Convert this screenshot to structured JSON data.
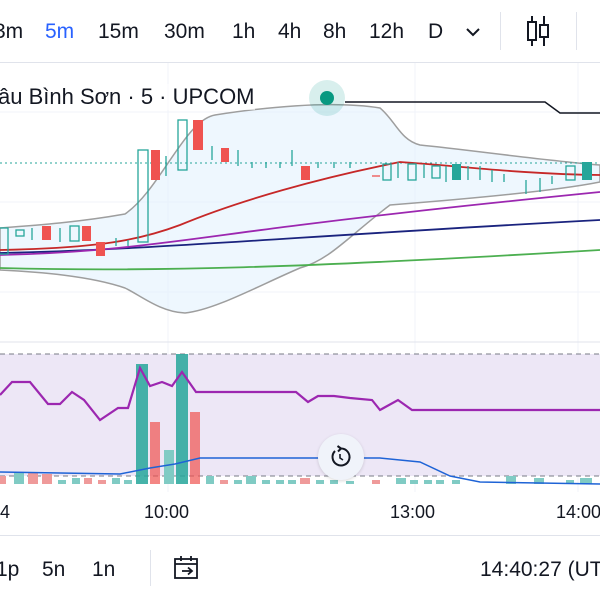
{
  "toolbar": {
    "intervals": [
      {
        "label": "3m"
      },
      {
        "label": "5m"
      },
      {
        "label": "15m"
      },
      {
        "label": "30m"
      },
      {
        "label": "1h"
      },
      {
        "label": "4h"
      },
      {
        "label": "8h"
      },
      {
        "label": "12h"
      },
      {
        "label": "D"
      }
    ],
    "active_interval": "5m",
    "dropdown_icon": "chevron-down-icon",
    "chart_type_icon": "candles-icon"
  },
  "legend": {
    "title": "âu Bình Sơn · 5 · UPCOM",
    "status_color": "#089981"
  },
  "time_axis": {
    "labels": [
      "4",
      "10:00",
      "13:00",
      "14:00"
    ]
  },
  "colors": {
    "up": "#26a69a",
    "down": "#ef5350",
    "sma_fast": "#c62828",
    "sma_mid": "#9c27b0",
    "sma_slow": "#1a237e",
    "sma_long": "#4caf50",
    "bollinger": "#9e9e9e",
    "rsi": "#9c27b0",
    "rsi_band": "#ede7f6",
    "volume_ma": "#1e63d6"
  },
  "bottom_bar": {
    "ranges": [
      {
        "label": "1p"
      },
      {
        "label": "5n"
      },
      {
        "label": "1n"
      }
    ],
    "goto_icon": "calendar-goto-icon",
    "clock": "14:40:27 (UT"
  },
  "reset_icon": "reset-icon"
}
